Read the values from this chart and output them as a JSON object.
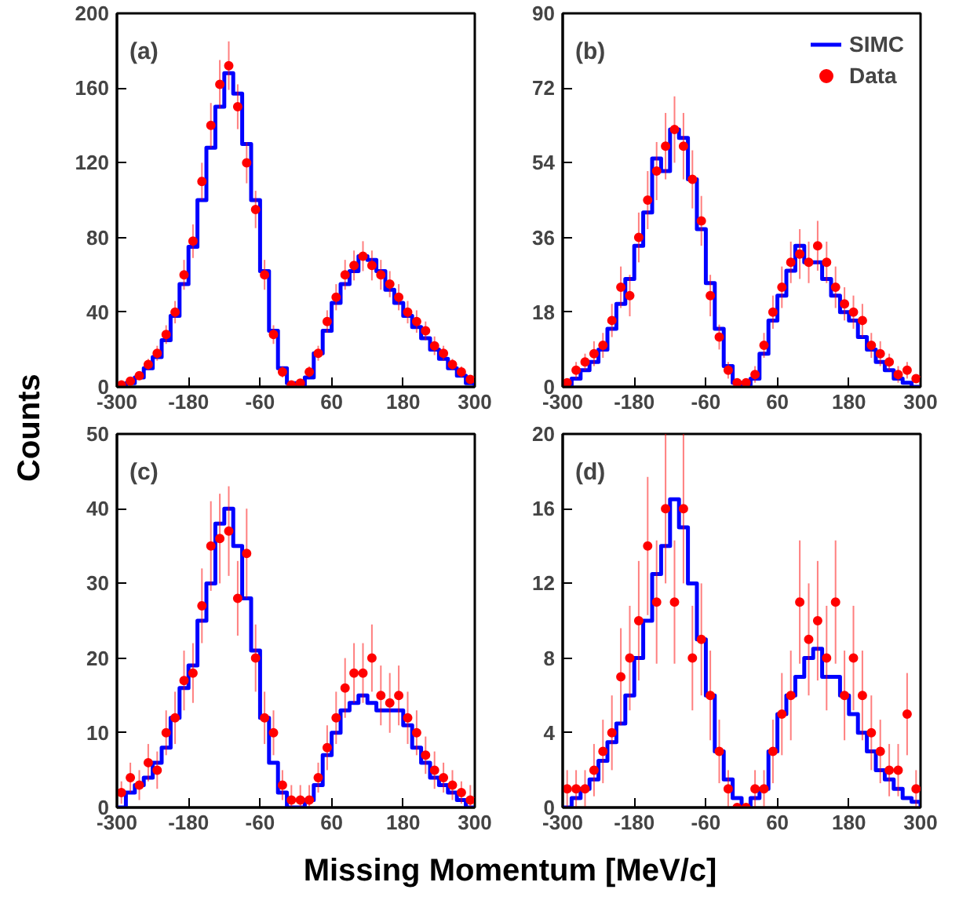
{
  "chart_data": [
    {
      "type": "step",
      "title": "(a)",
      "ylabel": "Counts",
      "xlim": [
        -300,
        300
      ],
      "xticks": [
        -300,
        -180,
        -60,
        60,
        180,
        300
      ],
      "ylim": [
        0,
        200
      ],
      "yticks": [
        0,
        40,
        80,
        120,
        160,
        200
      ],
      "grid": false,
      "legend": false,
      "series": [
        {
          "color": "#0000ff",
          "x": [
            -300,
            -285,
            -270,
            -255,
            -240,
            -225,
            -210,
            -195,
            -180,
            -165,
            -150,
            -135,
            -120,
            -105,
            -90,
            -75,
            -60,
            -45,
            -30,
            -15,
            0,
            15,
            30,
            45,
            60,
            75,
            90,
            105,
            120,
            135,
            150,
            165,
            180,
            195,
            210,
            225,
            240,
            255,
            270,
            285,
            300
          ],
          "values": [
            0,
            2,
            5,
            10,
            16,
            25,
            38,
            55,
            75,
            100,
            128,
            150,
            168,
            157,
            130,
            100,
            62,
            30,
            10,
            2,
            0,
            5,
            18,
            30,
            45,
            55,
            62,
            70,
            68,
            62,
            52,
            45,
            38,
            32,
            26,
            20,
            15,
            10,
            6,
            2,
            0
          ]
        },
        {
          "type": "scatter",
          "marker": "circle",
          "color": "#ff0000",
          "x": [
            -292.5,
            -277.5,
            -262.5,
            -247.5,
            -232.5,
            -217.5,
            -202.5,
            -187.5,
            -172.5,
            -157.5,
            -142.5,
            -127.5,
            -112.5,
            -97.5,
            -82.5,
            -67.5,
            -52.5,
            -37.5,
            -22.5,
            -7.5,
            7.5,
            22.5,
            37.5,
            52.5,
            67.5,
            82.5,
            97.5,
            112.5,
            127.5,
            142.5,
            157.5,
            172.5,
            187.5,
            202.5,
            217.5,
            232.5,
            247.5,
            262.5,
            277.5,
            292.5
          ],
          "values": [
            1,
            3,
            6,
            12,
            18,
            28,
            40,
            60,
            78,
            110,
            140,
            162,
            172,
            150,
            120,
            95,
            60,
            28,
            8,
            1,
            2,
            8,
            18,
            35,
            48,
            60,
            65,
            70,
            65,
            60,
            55,
            48,
            40,
            35,
            30,
            22,
            18,
            12,
            8,
            4
          ],
          "errors": [
            1,
            2,
            2,
            3,
            4,
            5,
            6,
            8,
            9,
            10,
            12,
            13,
            13,
            12,
            11,
            10,
            8,
            5,
            3,
            1,
            1,
            3,
            4,
            6,
            7,
            8,
            8,
            8,
            8,
            8,
            7,
            7,
            6,
            6,
            5,
            5,
            4,
            3,
            3,
            2
          ]
        }
      ]
    },
    {
      "type": "step",
      "title": "(b)",
      "xlim": [
        -300,
        300
      ],
      "xticks": [
        -300,
        -180,
        -60,
        60,
        180,
        300
      ],
      "ylim": [
        0,
        90
      ],
      "yticks": [
        0,
        18,
        36,
        54,
        72,
        90
      ],
      "grid": false,
      "legend": "top right",
      "series": [
        {
          "name": "SIMC",
          "color": "#0000ff",
          "x": [
            -300,
            -285,
            -270,
            -255,
            -240,
            -225,
            -210,
            -195,
            -180,
            -165,
            -150,
            -135,
            -120,
            -105,
            -90,
            -75,
            -60,
            -45,
            -30,
            -15,
            0,
            15,
            30,
            45,
            60,
            75,
            90,
            105,
            120,
            135,
            150,
            165,
            180,
            195,
            210,
            225,
            240,
            255,
            270,
            285,
            300
          ],
          "values": [
            0,
            2,
            4,
            6,
            9,
            14,
            20,
            26,
            34,
            42,
            55,
            52,
            62,
            60,
            50,
            38,
            25,
            14,
            5,
            1,
            0,
            2,
            8,
            16,
            22,
            28,
            34,
            30,
            30,
            26,
            22,
            18,
            16,
            12,
            9,
            6,
            4,
            2,
            1,
            0,
            0
          ]
        },
        {
          "type": "scatter",
          "name": "Data",
          "marker": "circle",
          "color": "#ff0000",
          "x": [
            -292.5,
            -277.5,
            -262.5,
            -247.5,
            -232.5,
            -217.5,
            -202.5,
            -187.5,
            -172.5,
            -157.5,
            -142.5,
            -127.5,
            -112.5,
            -97.5,
            -82.5,
            -67.5,
            -52.5,
            -37.5,
            -22.5,
            -7.5,
            7.5,
            22.5,
            37.5,
            52.5,
            67.5,
            82.5,
            97.5,
            112.5,
            127.5,
            142.5,
            157.5,
            172.5,
            187.5,
            202.5,
            217.5,
            232.5,
            247.5,
            262.5,
            277.5,
            292.5
          ],
          "values": [
            1,
            4,
            6,
            8,
            10,
            16,
            24,
            22,
            36,
            45,
            52,
            58,
            62,
            58,
            50,
            40,
            22,
            12,
            4,
            1,
            1,
            3,
            10,
            18,
            24,
            30,
            32,
            30,
            34,
            30,
            24,
            20,
            18,
            16,
            10,
            8,
            6,
            3,
            4,
            2
          ],
          "errors": [
            1,
            2,
            2,
            3,
            3,
            4,
            5,
            5,
            6,
            7,
            7,
            8,
            8,
            8,
            7,
            6,
            5,
            3,
            2,
            1,
            1,
            2,
            3,
            4,
            5,
            5,
            6,
            5,
            6,
            5,
            5,
            4,
            4,
            4,
            3,
            3,
            2,
            2,
            2,
            1
          ]
        }
      ]
    },
    {
      "type": "step",
      "title": "(c)",
      "xlabel": "Missing Momentum [MeV/c]",
      "xlim": [
        -300,
        300
      ],
      "xticks": [
        -300,
        -180,
        -60,
        60,
        180,
        300
      ],
      "ylim": [
        0,
        50
      ],
      "yticks": [
        0,
        10,
        20,
        30,
        40,
        50
      ],
      "grid": false,
      "legend": false,
      "series": [
        {
          "color": "#0000ff",
          "x": [
            -300,
            -285,
            -270,
            -255,
            -240,
            -225,
            -210,
            -195,
            -180,
            -165,
            -150,
            -135,
            -120,
            -105,
            -90,
            -75,
            -60,
            -45,
            -30,
            -15,
            0,
            15,
            30,
            45,
            60,
            75,
            90,
            105,
            120,
            135,
            150,
            165,
            180,
            195,
            210,
            225,
            240,
            255,
            270,
            285,
            300
          ],
          "values": [
            0,
            2,
            3,
            4,
            6,
            8,
            12,
            16,
            19,
            25,
            30,
            38,
            40,
            35,
            28,
            21,
            12,
            6,
            2,
            0,
            0,
            1,
            3,
            7,
            10,
            13,
            14,
            15,
            14,
            13,
            13,
            13,
            11,
            8,
            6,
            4,
            3,
            2,
            1,
            0,
            0
          ]
        },
        {
          "type": "scatter",
          "marker": "circle",
          "color": "#ff0000",
          "x": [
            -292.5,
            -277.5,
            -262.5,
            -247.5,
            -232.5,
            -217.5,
            -202.5,
            -187.5,
            -172.5,
            -157.5,
            -142.5,
            -127.5,
            -112.5,
            -97.5,
            -82.5,
            -67.5,
            -52.5,
            -37.5,
            -22.5,
            -7.5,
            7.5,
            22.5,
            37.5,
            52.5,
            67.5,
            82.5,
            97.5,
            112.5,
            127.5,
            142.5,
            157.5,
            172.5,
            187.5,
            202.5,
            217.5,
            232.5,
            247.5,
            262.5,
            277.5,
            292.5
          ],
          "values": [
            2,
            4,
            3,
            6,
            5,
            10,
            12,
            17,
            18,
            27,
            35,
            36,
            37,
            28,
            34,
            20,
            12,
            10,
            3,
            1,
            1,
            1,
            4,
            8,
            12,
            16,
            18,
            18,
            20,
            15,
            14,
            15,
            12,
            10,
            7,
            5,
            4,
            3,
            2,
            1
          ],
          "errors": [
            1.5,
            2,
            2,
            2.5,
            2.5,
            3,
            3.5,
            4,
            4,
            5,
            6,
            6,
            6,
            5,
            6,
            4.5,
            3.5,
            3,
            2,
            2,
            2,
            2,
            2,
            3,
            3.5,
            4,
            4,
            4,
            4.5,
            4,
            4,
            4,
            3.5,
            3,
            2.5,
            2.5,
            2,
            2,
            1.5,
            2
          ]
        }
      ]
    },
    {
      "type": "step",
      "title": "(d)",
      "xlim": [
        -300,
        300
      ],
      "xticks": [
        -300,
        -180,
        -60,
        60,
        180,
        300
      ],
      "ylim": [
        0,
        20
      ],
      "yticks": [
        0,
        4,
        8,
        12,
        16,
        20
      ],
      "grid": false,
      "legend": false,
      "series": [
        {
          "color": "#0000ff",
          "x": [
            -300,
            -285,
            -270,
            -255,
            -240,
            -225,
            -210,
            -195,
            -180,
            -165,
            -150,
            -135,
            -120,
            -105,
            -90,
            -75,
            -60,
            -45,
            -30,
            -15,
            0,
            15,
            30,
            45,
            60,
            75,
            90,
            105,
            120,
            135,
            150,
            165,
            180,
            195,
            210,
            225,
            240,
            255,
            270,
            285,
            300
          ],
          "values": [
            0,
            0.5,
            1,
            1.5,
            2.5,
            3.5,
            4.5,
            6,
            8,
            10,
            12.5,
            14,
            16.5,
            15,
            12,
            9,
            6,
            3,
            1.5,
            0.5,
            0,
            0.5,
            1,
            3,
            5,
            6,
            7,
            8,
            8.5,
            7,
            7,
            6,
            5,
            4,
            3,
            2,
            1.5,
            1,
            0.5,
            0.3,
            0
          ]
        },
        {
          "type": "scatter",
          "marker": "circle",
          "color": "#ff0000",
          "x": [
            -292.5,
            -277.5,
            -262.5,
            -247.5,
            -232.5,
            -217.5,
            -202.5,
            -187.5,
            -172.5,
            -157.5,
            -142.5,
            -127.5,
            -112.5,
            -97.5,
            -82.5,
            -67.5,
            -52.5,
            -37.5,
            -22.5,
            -7.5,
            7.5,
            22.5,
            37.5,
            52.5,
            67.5,
            82.5,
            97.5,
            112.5,
            127.5,
            142.5,
            157.5,
            172.5,
            187.5,
            202.5,
            217.5,
            232.5,
            247.5,
            262.5,
            277.5,
            292.5
          ],
          "values": [
            1,
            1,
            1,
            2,
            3,
            4,
            7,
            8,
            10,
            14,
            11,
            16,
            11,
            16,
            8,
            9,
            6,
            3,
            1,
            0,
            0,
            1,
            1,
            3,
            5,
            6,
            11,
            9,
            10,
            8,
            11,
            6,
            8,
            6,
            4,
            3,
            2,
            2,
            5,
            1
          ],
          "errors": [
            1,
            1,
            1,
            1.4,
            1.7,
            2,
            2.6,
            2.8,
            3.2,
            3.7,
            3.3,
            4,
            3.3,
            4,
            2.8,
            3,
            2.4,
            1.7,
            1,
            null,
            null,
            1,
            1,
            1.7,
            2.2,
            2.4,
            3.3,
            3,
            3.2,
            2.8,
            3.3,
            2.4,
            2.8,
            2.4,
            2,
            1.7,
            1.4,
            1.4,
            2.2,
            1
          ]
        }
      ]
    }
  ]
}
